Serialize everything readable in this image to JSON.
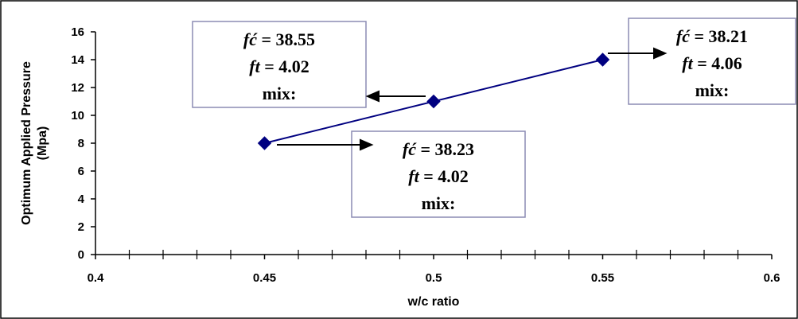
{
  "chart_data": {
    "type": "line",
    "title": "",
    "xlabel": "w/c ratio",
    "ylabel_lines": [
      "Optimum Applied Pressure",
      "(Mpa)"
    ],
    "xlim": [
      0.4,
      0.6
    ],
    "ylim": [
      0,
      16
    ],
    "x_ticks": [
      "0.4",
      "0.45",
      "0.5",
      "0.55",
      "0.6"
    ],
    "y_ticks": [
      "0",
      "2",
      "4",
      "6",
      "8",
      "10",
      "12",
      "14",
      "16"
    ],
    "series": [
      {
        "x": [
          0.45,
          0.5,
          0.55
        ],
        "values": [
          8,
          11,
          14
        ],
        "color": "#000080"
      }
    ],
    "grid": false,
    "legend": "none",
    "annotations": [
      {
        "point": 1,
        "fc_label": "fć",
        "fc_value": " = 38.55",
        "ft_label": "ft",
        "ft_value": " = 4.02",
        "mix_label": "mix:"
      },
      {
        "point": 2,
        "fc_label": "fć",
        "fc_value": " = 38.21",
        "ft_label": "ft",
        "ft_value": " = 4.06",
        "mix_label": "mix:"
      },
      {
        "point": 0,
        "fc_label": "fć",
        "fc_value": " = 38.23",
        "ft_label": "ft",
        "ft_value": " = 4.02",
        "mix_label": "mix:"
      }
    ]
  }
}
